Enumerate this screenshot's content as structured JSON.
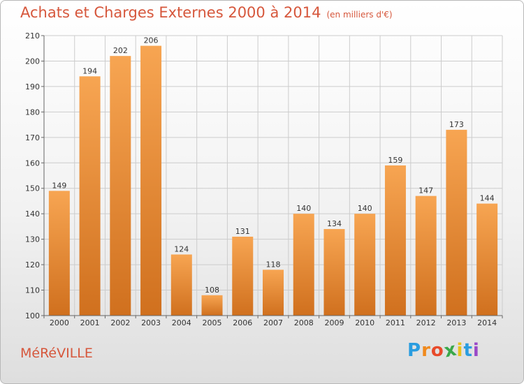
{
  "chart_data": {
    "type": "bar",
    "title": "Achats et Charges Externes 2000 à 2014",
    "subtitle": "(en milliers d'€)",
    "categories": [
      "2000",
      "2001",
      "2002",
      "2003",
      "2004",
      "2005",
      "2006",
      "2007",
      "2008",
      "2009",
      "2010",
      "2011",
      "2012",
      "2013",
      "2014"
    ],
    "values": [
      149,
      194,
      202,
      206,
      124,
      108,
      131,
      118,
      140,
      134,
      140,
      159,
      147,
      173,
      144
    ],
    "ylim": [
      100,
      210
    ],
    "yticks": [
      100,
      110,
      120,
      130,
      140,
      150,
      160,
      170,
      180,
      190,
      200,
      210
    ],
    "grid": true,
    "bar_color_top": "#f7a552",
    "bar_color_bottom": "#d0701e"
  },
  "footer": {
    "commune": "MéRéVILLE",
    "logo_letters": [
      "P",
      "r",
      "o",
      "x",
      "i",
      "t",
      "i"
    ],
    "logo_colors": [
      "#2a9de0",
      "#f08a1e",
      "#e84a2a",
      "#3aa84a",
      "#e8c21e",
      "#2a9de0",
      "#9a4ac8"
    ]
  }
}
